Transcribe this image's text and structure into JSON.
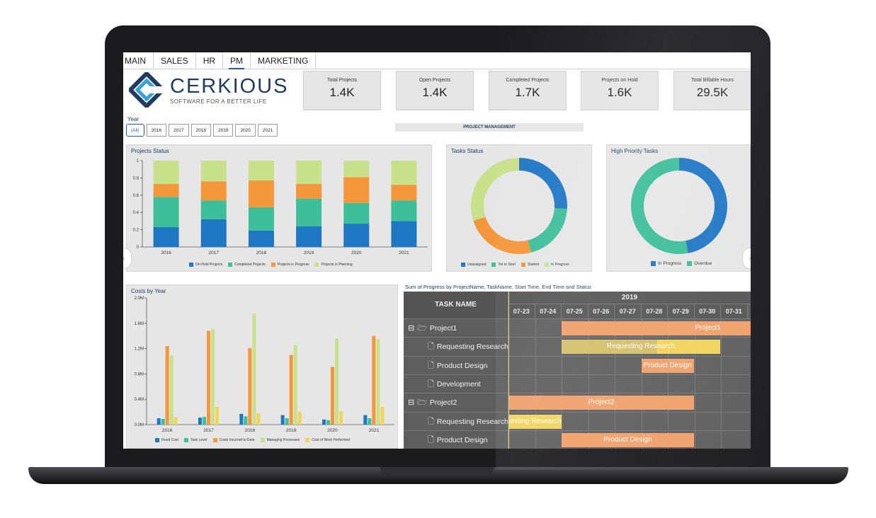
{
  "tabs": [
    {
      "label": "MAIN",
      "active": false
    },
    {
      "label": "SALES",
      "active": false
    },
    {
      "label": "HR",
      "active": false
    },
    {
      "label": "PM",
      "active": true
    },
    {
      "label": "MARKETING",
      "active": false
    }
  ],
  "logo": {
    "wordmark": "CERKIOUS",
    "tagline": "SOFTWARE FOR A BETTER LIFE"
  },
  "kpis": [
    {
      "label": "Total Projects",
      "value": "1.4K"
    },
    {
      "label": "Open Projects",
      "value": "1.4K"
    },
    {
      "label": "Completed Projects",
      "value": "1.7K"
    },
    {
      "label": "Projects on Hold",
      "value": "1.6K"
    },
    {
      "label": "Total Billable Hours",
      "value": "29.5K"
    }
  ],
  "year_filter": {
    "label": "Year",
    "options": [
      "(All)",
      "2016",
      "2017",
      "2018",
      "2019",
      "2020",
      "2021"
    ],
    "selected": "(All)"
  },
  "section_label": "PROJECT MANAGEMENT",
  "colors": {
    "blue": "#1f77c4",
    "teal": "#3dbf9a",
    "orange": "#f4963a",
    "lightgreen": "#c9e08a",
    "yellow": "#f2d35c"
  },
  "projects_status": {
    "title": "Projects Status",
    "chart_data": {
      "type": "bar",
      "stacked": true,
      "categories": [
        "2016",
        "2017",
        "2018",
        "2019",
        "2020",
        "2021"
      ],
      "series": [
        {
          "name": "On-Hold Projects",
          "values": [
            0.23,
            0.32,
            0.19,
            0.24,
            0.27,
            0.3
          ]
        },
        {
          "name": "Completed Projects",
          "values": [
            0.35,
            0.22,
            0.27,
            0.32,
            0.24,
            0.24
          ]
        },
        {
          "name": "Projects in Progress",
          "values": [
            0.15,
            0.22,
            0.31,
            0.17,
            0.3,
            0.18
          ]
        },
        {
          "name": "Projects in Planning",
          "values": [
            0.27,
            0.24,
            0.23,
            0.27,
            0.19,
            0.28
          ]
        }
      ],
      "ylim": [
        0,
        1
      ],
      "yticks": [
        "0",
        "0.2",
        "0.4",
        "0.6",
        "0.8",
        "1"
      ]
    }
  },
  "tasks_status": {
    "title": "Tasks Status",
    "chart_data": {
      "type": "pie",
      "donut": true,
      "labels": [
        "Unassigned",
        "Yet to Start",
        "Started",
        "In Progress"
      ],
      "values": [
        26,
        20,
        24,
        30
      ]
    }
  },
  "high_priority": {
    "title": "High Priority Tasks",
    "chart_data": {
      "type": "pie",
      "donut": true,
      "labels": [
        "In Progress",
        "Overdue"
      ],
      "values": [
        47,
        53
      ]
    }
  },
  "costs_by_year": {
    "title": "Costs by Year",
    "chart_data": {
      "type": "bar",
      "categories": [
        "2016",
        "2017",
        "2018",
        "2019",
        "2020",
        "2021"
      ],
      "series": [
        {
          "name": "Fixed Cost",
          "values": [
            0.1,
            0.11,
            0.17,
            0.15,
            0.08,
            0.15
          ]
        },
        {
          "name": "Task Level",
          "values": [
            0.09,
            0.12,
            0.13,
            0.1,
            0.07,
            0.1
          ]
        },
        {
          "name": "Costs Incurred to Date",
          "values": [
            1.24,
            1.48,
            1.21,
            1.1,
            0.91,
            1.4
          ]
        },
        {
          "name": "Managing Processes",
          "values": [
            1.09,
            1.51,
            1.75,
            1.26,
            1.36,
            1.35
          ]
        },
        {
          "name": "Cost of Work Performed",
          "values": [
            0.12,
            0.28,
            0.18,
            0.2,
            0.21,
            0.28
          ]
        }
      ],
      "ylim": [
        0,
        2.0
      ],
      "yticks": [
        "0.0M",
        "0.4M",
        "0.8M",
        "1.2M",
        "1.6M",
        "2.0M"
      ]
    }
  },
  "gantt": {
    "title": "Sum of Progress by ProjectName, TaskName, Start Time, End Time and Status",
    "task_header": "TASK NAME",
    "year": "2019",
    "dates": [
      "07-23",
      "07-24",
      "07-25",
      "07-26",
      "07-27",
      "07-28",
      "07-29",
      "07-30",
      "07-31"
    ],
    "rows": [
      {
        "name": "Project1",
        "type": "project",
        "bar_label": "Project1"
      },
      {
        "name": "Requesting Research",
        "type": "task",
        "bar_label": "Requesting Research"
      },
      {
        "name": "Product Design",
        "type": "task",
        "bar_label": "Product Design"
      },
      {
        "name": "Development",
        "type": "task",
        "bar_label": ""
      },
      {
        "name": "Project2",
        "type": "project",
        "bar_label": "Project2"
      },
      {
        "name": "Requesting Research",
        "type": "task",
        "bar_label": "Requesting Research"
      },
      {
        "name": "Product Design",
        "type": "task",
        "bar_label": "Product Design"
      }
    ]
  }
}
